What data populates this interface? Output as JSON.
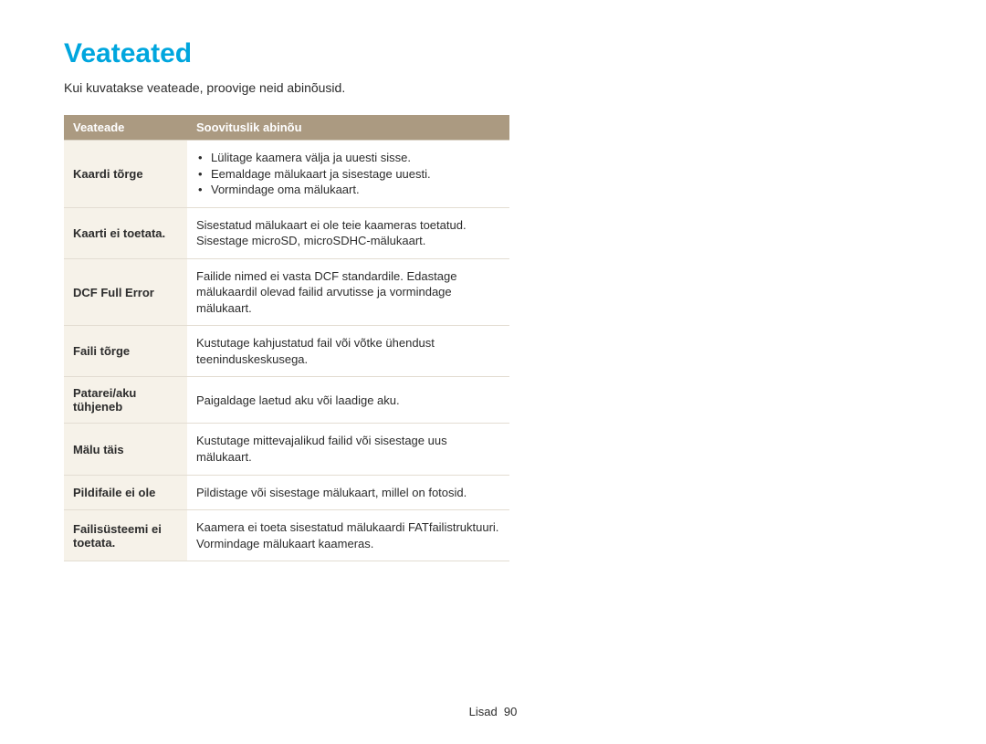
{
  "heading": "Veateated",
  "subtitle": "Kui kuvatakse veateade, proovige neid abinõusid.",
  "table": {
    "col1": "Veateade",
    "col2": "Soovituslik abinõu"
  },
  "rows": {
    "r1": {
      "label": "Kaardi tõrge",
      "b1": "Lülitage kaamera välja ja uuesti sisse.",
      "b2": "Eemaldage mälukaart ja sisestage uuesti.",
      "b3": "Vormindage oma mälukaart."
    },
    "r2": {
      "label": "Kaarti ei toetata.",
      "text": "Sisestatud mälukaart ei ole teie kaameras toetatud. Sisestage microSD, microSDHC-mälukaart."
    },
    "r3": {
      "label": "DCF Full Error",
      "text": "Failide nimed ei vasta DCF standardile. Edastage mälukaardil olevad failid arvutisse ja vormindage mälukaart."
    },
    "r4": {
      "label": "Faili tõrge",
      "text": "Kustutage kahjustatud fail või võtke ühendust teeninduskeskusega."
    },
    "r5": {
      "label": "Patarei/aku tühjeneb",
      "text": "Paigaldage laetud aku või laadige aku."
    },
    "r6": {
      "label": "Mälu täis",
      "text": "Kustutage mittevajalikud failid või sisestage uus mälukaart."
    },
    "r7": {
      "label": "Pildifaile ei ole",
      "text": "Pildistage või sisestage mälukaart, millel on fotosid."
    },
    "r8": {
      "label": "Failisüsteemi ei toetata.",
      "text": "Kaamera ei toeta sisestatud mälukaardi FATfailistruktuuri. Vormindage mälukaart kaameras."
    }
  },
  "footer": {
    "section": "Lisad",
    "pagenum": "90"
  }
}
